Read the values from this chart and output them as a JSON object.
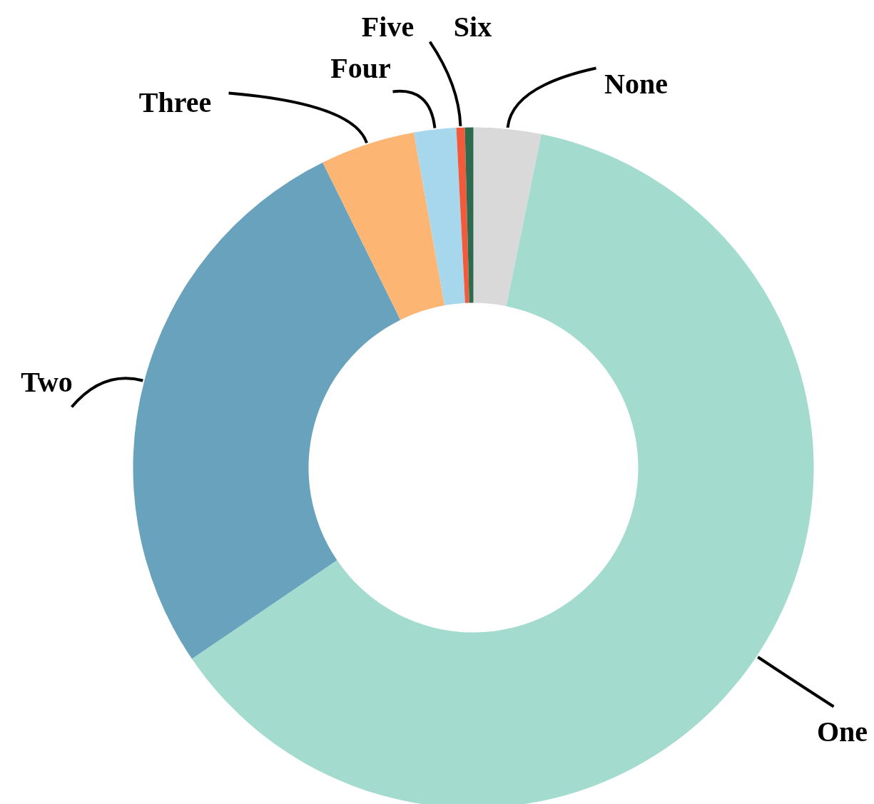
{
  "chart_data": {
    "type": "donut",
    "categories": [
      "None",
      "One",
      "Two",
      "Three",
      "Four",
      "Five",
      "Six"
    ],
    "values": [
      3.2,
      62.3,
      27.2,
      4.5,
      2.0,
      0.4,
      0.4
    ],
    "colors": [
      "#d9d9d9",
      "#a3dccf",
      "#69a2bc",
      "#fdb573",
      "#a7d7ec",
      "#f15a3a",
      "#2e6b4e"
    ]
  }
}
